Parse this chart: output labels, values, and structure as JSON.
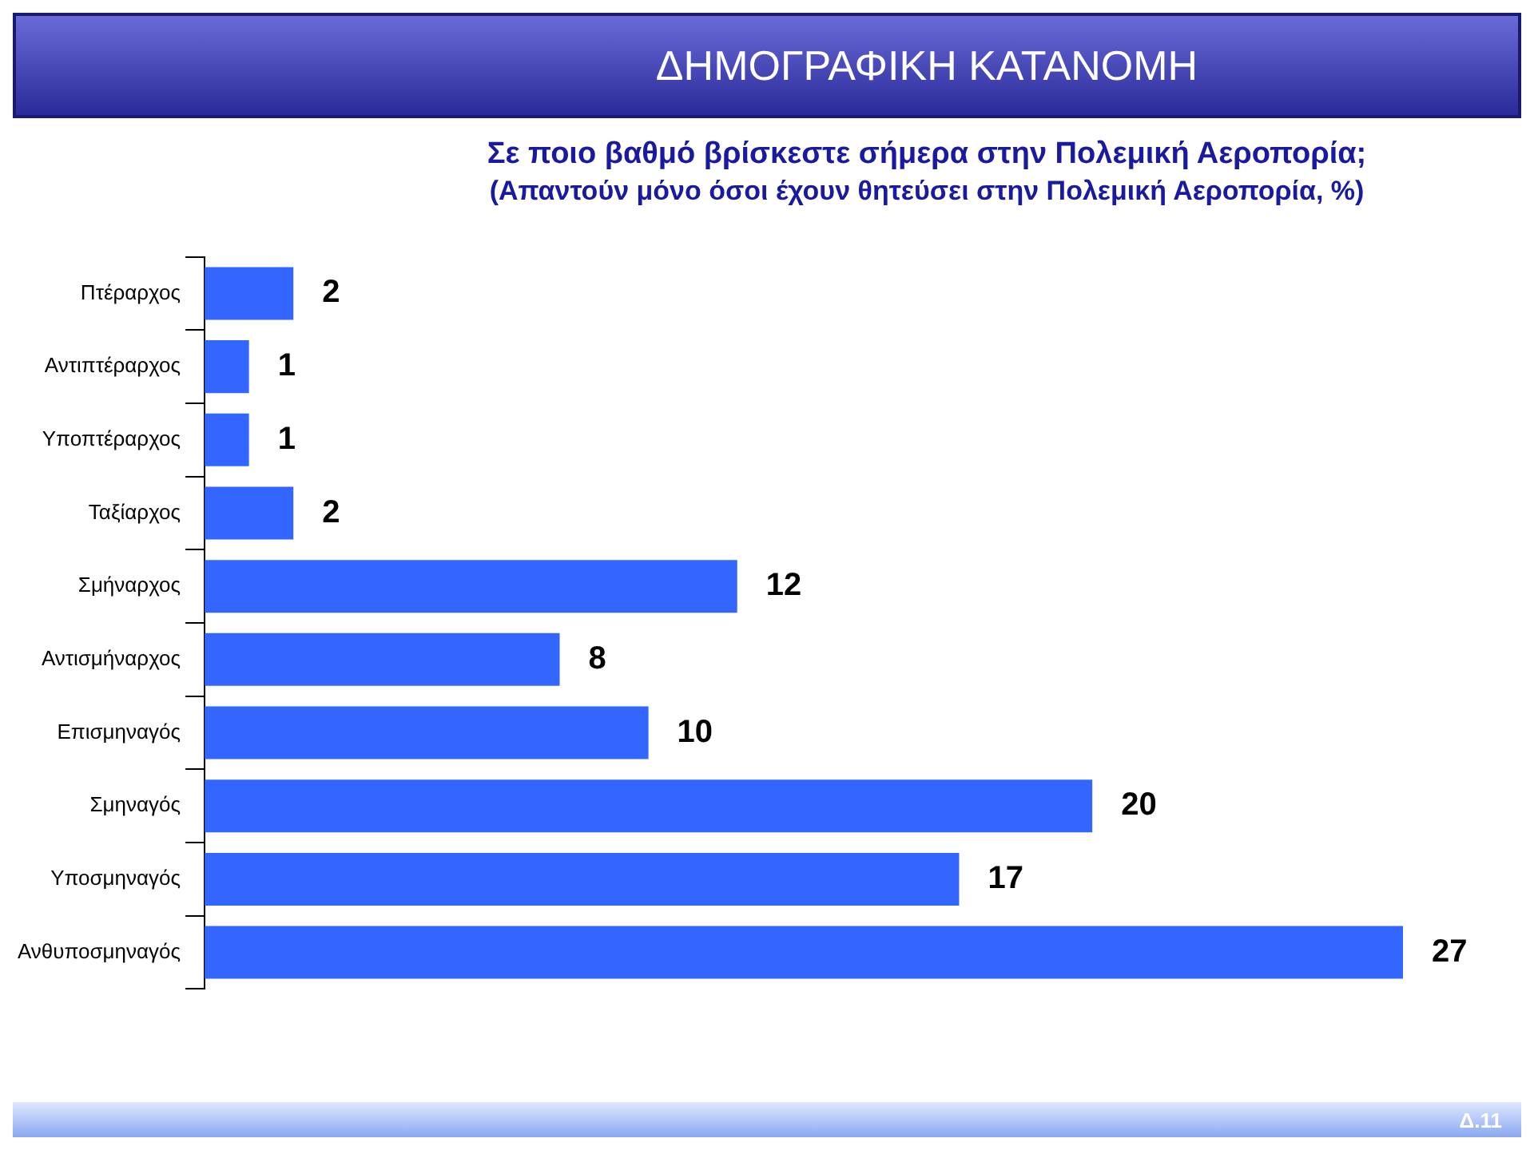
{
  "chart_data": {
    "type": "bar",
    "orientation": "horizontal",
    "title": "ΔΗΜΟΓΡΑΦΙΚΗ ΚΑΤΑΝΟΜΗ",
    "subtitle": "Σε ποιο βαθμό βρίσκεστε σήμερα στην Πολεμική Αεροπορία;",
    "annotations": [
      "(Απαντούν μόνο όσοι έχουν θητεύσει στην Πολεμική Αεροπορία, %)",
      "Δ.11"
    ],
    "categories": [
      "Πτέραρχος",
      "Αντιπτέραρχος",
      "Υποπτέραρχος",
      "Ταξίαρχος",
      "Σμήναρχος",
      "Αντισμήναρχος",
      "Επισμηναγός",
      "Σμηναγός",
      "Υποσμηναγός",
      "Ανθυποσμηναγός"
    ],
    "values": [
      2,
      1,
      1,
      2,
      12,
      8,
      10,
      20,
      17,
      27
    ],
    "color": "#3366ff",
    "data_labels": true,
    "grid": false,
    "legend": false
  }
}
